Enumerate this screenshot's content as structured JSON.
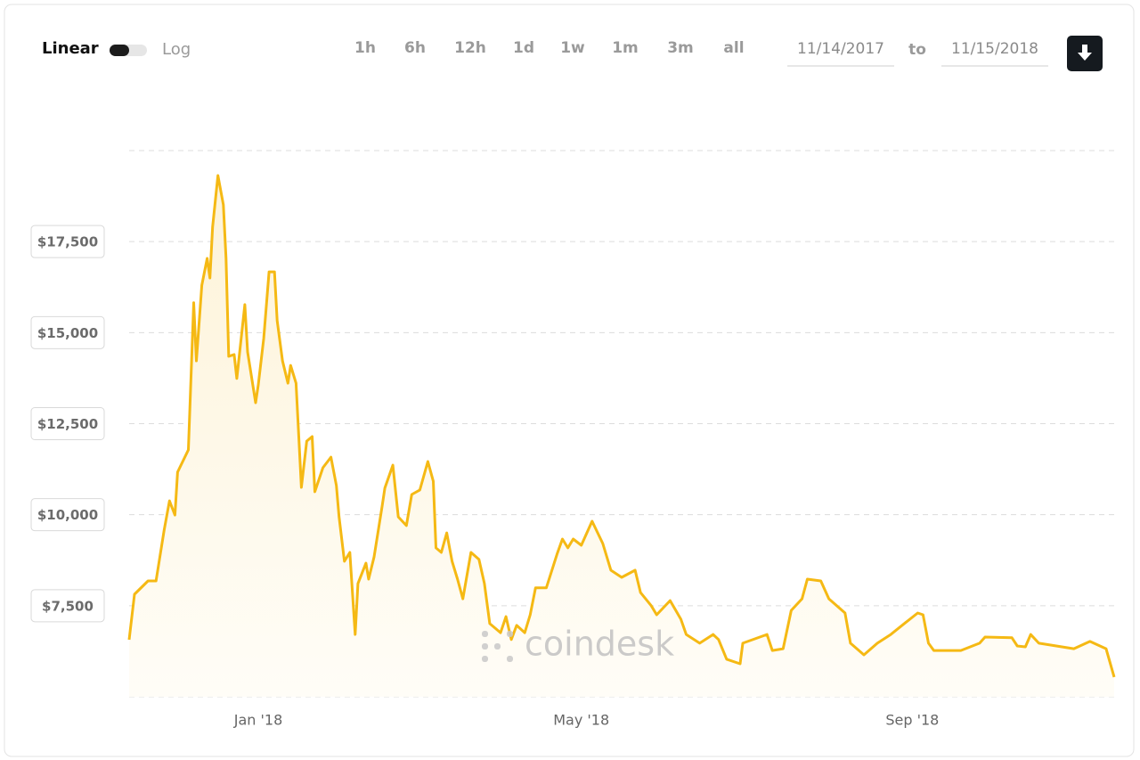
{
  "controls": {
    "scale_linear": "Linear",
    "scale_log": "Log",
    "ranges": [
      "1h",
      "6h",
      "12h",
      "1d",
      "1w",
      "1m",
      "3m",
      "all"
    ],
    "date_from": "11/14/2017",
    "date_to_word": "to",
    "date_to": "11/15/2018"
  },
  "watermark": "coindesk",
  "chart_data": {
    "type": "line",
    "color": "#f5b914",
    "grid": true,
    "area": true,
    "xlim": [
      "2017-11-14",
      "2018-11-15"
    ],
    "xticks": [
      {
        "value": "2018-01-01",
        "label": "Jan '18"
      },
      {
        "value": "2018-05-01",
        "label": "May '18"
      },
      {
        "value": "2018-09-01",
        "label": "Sep '18"
      }
    ],
    "ylim": [
      5000,
      20000
    ],
    "yticks": [
      {
        "value": 7500,
        "label": "$7,500"
      },
      {
        "value": 10000,
        "label": "$10,000"
      },
      {
        "value": 12500,
        "label": "$12,500"
      },
      {
        "value": 15000,
        "label": "$15,000"
      },
      {
        "value": 17500,
        "label": "$17,500"
      }
    ],
    "x": [
      "2017-11-14",
      "2017-11-16",
      "2017-11-21",
      "2017-11-24",
      "2017-11-27",
      "2017-11-29",
      "2017-12-01",
      "2017-12-02",
      "2017-12-06",
      "2017-12-08",
      "2017-12-09",
      "2017-12-11",
      "2017-12-13",
      "2017-12-14",
      "2017-12-15",
      "2017-12-17",
      "2017-12-19",
      "2017-12-20",
      "2017-12-21",
      "2017-12-23",
      "2017-12-24",
      "2017-12-27",
      "2017-12-28",
      "2017-12-31",
      "2018-01-01",
      "2018-01-03",
      "2018-01-05",
      "2018-01-07",
      "2018-01-08",
      "2018-01-10",
      "2018-01-12",
      "2018-01-13",
      "2018-01-15",
      "2018-01-17",
      "2018-01-19",
      "2018-01-21",
      "2018-01-22",
      "2018-01-25",
      "2018-01-28",
      "2018-01-30",
      "2018-01-31",
      "2018-02-02",
      "2018-02-04",
      "2018-02-06",
      "2018-02-07",
      "2018-02-10",
      "2018-02-11",
      "2018-02-13",
      "2018-02-16",
      "2018-02-17",
      "2018-02-20",
      "2018-02-22",
      "2018-02-25",
      "2018-02-27",
      "2018-03-02",
      "2018-03-05",
      "2018-03-07",
      "2018-03-08",
      "2018-03-10",
      "2018-03-12",
      "2018-03-14",
      "2018-03-16",
      "2018-03-18",
      "2018-03-21",
      "2018-03-24",
      "2018-03-26",
      "2018-03-28",
      "2018-04-01",
      "2018-04-03",
      "2018-04-05",
      "2018-04-07",
      "2018-04-10",
      "2018-04-12",
      "2018-04-14",
      "2018-04-18",
      "2018-04-22",
      "2018-04-24",
      "2018-04-26",
      "2018-04-28",
      "2018-05-01",
      "2018-05-05",
      "2018-05-09",
      "2018-05-12",
      "2018-05-16",
      "2018-05-21",
      "2018-05-23",
      "2018-05-27",
      "2018-05-29",
      "2018-06-03",
      "2018-06-07",
      "2018-06-09",
      "2018-06-14",
      "2018-06-19",
      "2018-06-21",
      "2018-06-24",
      "2018-06-29",
      "2018-06-30",
      "2018-07-09",
      "2018-07-11",
      "2018-07-15",
      "2018-07-18",
      "2018-07-22",
      "2018-07-24",
      "2018-07-29",
      "2018-08-01",
      "2018-08-07",
      "2018-08-09",
      "2018-08-14",
      "2018-08-19",
      "2018-08-24",
      "2018-08-29",
      "2018-09-03",
      "2018-09-05",
      "2018-09-07",
      "2018-09-09",
      "2018-09-19",
      "2018-09-26",
      "2018-09-28",
      "2018-10-08",
      "2018-10-10",
      "2018-10-13",
      "2018-10-15",
      "2018-10-18",
      "2018-10-31",
      "2018-11-06",
      "2018-11-12",
      "2018-11-15"
    ],
    "values": [
      6566,
      7814,
      8180,
      8180,
      9575,
      10380,
      9990,
      11170,
      11780,
      15820,
      14225,
      16300,
      17040,
      16500,
      17900,
      19315,
      18510,
      17040,
      14350,
      14400,
      13740,
      15770,
      14470,
      13075,
      13565,
      14840,
      16670,
      16670,
      15330,
      14225,
      13610,
      14100,
      13610,
      10750,
      12020,
      12145,
      10630,
      11290,
      11580,
      10800,
      9940,
      8720,
      8965,
      6710,
      8110,
      8670,
      8230,
      8840,
      10240,
      10730,
      11360,
      9940,
      9700,
      10555,
      10680,
      11460,
      10920,
      9090,
      8965,
      9500,
      8720,
      8230,
      7690,
      8965,
      8770,
      8110,
      7010,
      6760,
      7200,
      6570,
      6960,
      6760,
      7250,
      7990,
      7990,
      8920,
      9330,
      9090,
      9330,
      9160,
      9820,
      9210,
      8475,
      8280,
      8475,
      7860,
      7500,
      7250,
      7640,
      7130,
      6710,
      6470,
      6710,
      6570,
      6030,
      5905,
      6470,
      6710,
      6270,
      6320,
      7370,
      7690,
      8230,
      8180,
      7690,
      7300,
      6470,
      6150,
      6470,
      6710,
      7010,
      7300,
      7250,
      6470,
      6270,
      6270,
      6470,
      6640,
      6620,
      6395,
      6370,
      6710,
      6470,
      6320,
      6520,
      6320,
      5540
    ]
  }
}
